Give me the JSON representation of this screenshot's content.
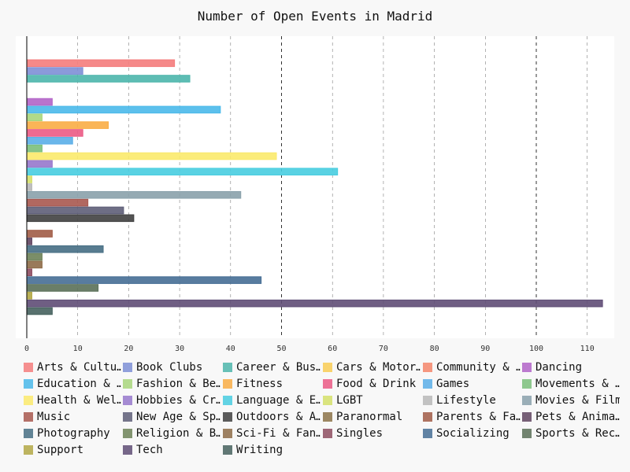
{
  "chart_data": {
    "type": "bar",
    "orientation": "horizontal",
    "title": "Number of Open Events in Madrid",
    "xlim": [
      0,
      115
    ],
    "xticks": [
      0,
      10,
      20,
      30,
      40,
      50,
      60,
      70,
      80,
      90,
      100,
      110
    ],
    "grid": true,
    "legend_position": "bottom",
    "series": [
      {
        "name": "Arts & Culture",
        "label": "Arts & Cultu…",
        "value": 29,
        "color": "#f47c7c"
      },
      {
        "name": "Book Clubs",
        "label": "Book Clubs",
        "value": 11,
        "color": "#7e8fd6"
      },
      {
        "name": "Career & Business",
        "label": "Career & Bus…",
        "value": 32,
        "color": "#4db6ac"
      },
      {
        "name": "Cars & Motorcycles",
        "label": "Cars & Motor…",
        "value": 0,
        "color": "#f9cd55"
      },
      {
        "name": "Community & Environment",
        "label": "Community & …",
        "value": 0,
        "color": "#f4866b"
      },
      {
        "name": "Dancing",
        "label": "Dancing",
        "value": 5,
        "color": "#b264c8"
      },
      {
        "name": "Education & Learning",
        "label": "Education & …",
        "value": 38,
        "color": "#4ab9ea"
      },
      {
        "name": "Fashion & Beauty",
        "label": "Fashion & Be…",
        "value": 3,
        "color": "#a8d67b"
      },
      {
        "name": "Fitness",
        "label": "Fitness",
        "value": 16,
        "color": "#f9ad45"
      },
      {
        "name": "Food & Drink",
        "label": "Food & Drink",
        "value": 11,
        "color": "#eb5a85"
      },
      {
        "name": "Games",
        "label": "Games",
        "value": 9,
        "color": "#5aaee8"
      },
      {
        "name": "Movements & Politics",
        "label": "Movements & …",
        "value": 3,
        "color": "#7bbf7b"
      },
      {
        "name": "Health & Wellbeing",
        "label": "Health & Wel…",
        "value": 49,
        "color": "#fbea6c"
      },
      {
        "name": "Hobbies & Crafts",
        "label": "Hobbies & Cr…",
        "value": 5,
        "color": "#9778cc"
      },
      {
        "name": "Language & Ethnic Identity",
        "label": "Language & E…",
        "value": 61,
        "color": "#48cde0"
      },
      {
        "name": "LGBT",
        "label": "LGBT",
        "value": 1,
        "color": "#d5e06a"
      },
      {
        "name": "Lifestyle",
        "label": "Lifestyle",
        "value": 1,
        "color": "#b8b8b8"
      },
      {
        "name": "Movies & Film",
        "label": "Movies & Film",
        "value": 42,
        "color": "#8aa1ab"
      },
      {
        "name": "Music",
        "label": "Music",
        "value": 12,
        "color": "#a8584f"
      },
      {
        "name": "New Age & Spirituality",
        "label": "New Age & Sp…",
        "value": 19,
        "color": "#5e5e78"
      },
      {
        "name": "Outdoors & Adventure",
        "label": "Outdoors & A…",
        "value": 21,
        "color": "#404040"
      },
      {
        "name": "Paranormal",
        "label": "Paranormal",
        "value": 0,
        "color": "#8c7348"
      },
      {
        "name": "Parents & Family",
        "label": "Parents & Fa…",
        "value": 5,
        "color": "#a15c46"
      },
      {
        "name": "Pets & Animals",
        "label": "Pets & Anima…",
        "value": 1,
        "color": "#604560"
      },
      {
        "name": "Photography",
        "label": "Photography",
        "value": 15,
        "color": "#466e84"
      },
      {
        "name": "Religion & Beliefs",
        "label": "Religion & B…",
        "value": 3,
        "color": "#6d8258"
      },
      {
        "name": "Sci-Fi & Fantasy",
        "label": "Sci-Fi & Fan…",
        "value": 3,
        "color": "#8e6c48"
      },
      {
        "name": "Singles",
        "label": "Singles",
        "value": 1,
        "color": "#8e4d60"
      },
      {
        "name": "Socializing",
        "label": "Socializing",
        "value": 46,
        "color": "#466e95"
      },
      {
        "name": "Sports & Recreation",
        "label": "Sports & Rec…",
        "value": 14,
        "color": "#5a7058"
      },
      {
        "name": "Support",
        "label": "Support",
        "value": 1,
        "color": "#b3a845"
      },
      {
        "name": "Tech",
        "label": "Tech",
        "value": 113,
        "color": "#5f4d75"
      },
      {
        "name": "Writing",
        "label": "Writing",
        "value": 5,
        "color": "#46625e"
      }
    ]
  }
}
